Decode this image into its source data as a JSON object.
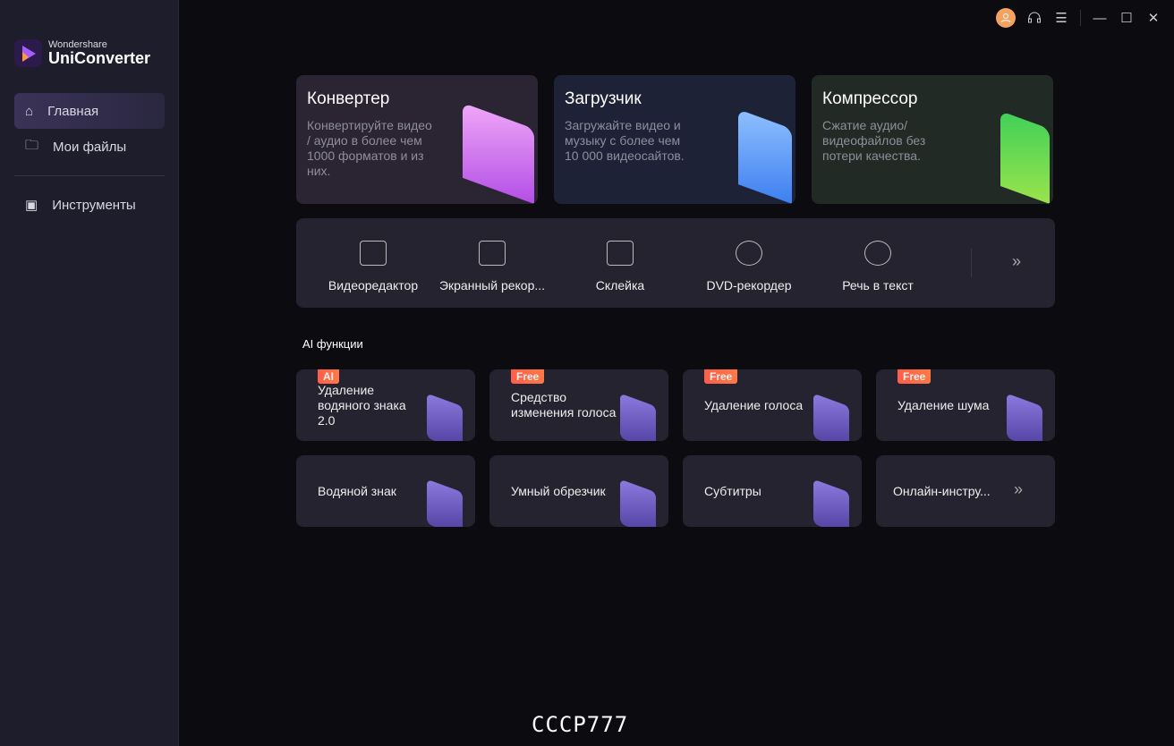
{
  "brand": {
    "small": "Wondershare",
    "big": "UniConverter"
  },
  "sidebar": {
    "items": [
      {
        "label": "Главная",
        "icon": "home-icon",
        "active": true
      },
      {
        "label": "Мои файлы",
        "icon": "folder-icon"
      },
      {
        "label": "Инструменты",
        "icon": "toolbox-icon"
      }
    ]
  },
  "topbar": {
    "icons": [
      "avatar-icon",
      "headset-icon",
      "menu-icon",
      "minimize-icon",
      "maximize-icon",
      "close-icon"
    ]
  },
  "main_cards": [
    {
      "title": "Конвертер",
      "desc": "Конвертируйте видео / аудио в более чем 1000 форматов и из них.",
      "color": "#2a2433",
      "accent": "#d77cf0"
    },
    {
      "title": "Загрузчик",
      "desc": "Загружайте видео и музыку с более чем 10 000 видеосайтов.",
      "color": "#1d2236",
      "accent": "#5b9bf5"
    },
    {
      "title": "Компрессор",
      "desc": "Сжатие аудио/ видеофайлов без потери качества.",
      "color": "#212a24",
      "accent": "#52d44a"
    }
  ],
  "tools": [
    {
      "label": "Видеоредактор"
    },
    {
      "label": "Экранный рекор..."
    },
    {
      "label": "Склейка"
    },
    {
      "label": "DVD-рекордер"
    },
    {
      "label": "Речь в текст"
    }
  ],
  "ai_section": {
    "title": "AI функции"
  },
  "ai_cards": [
    {
      "label": "Удаление водяного знака 2.0",
      "badge": "AI"
    },
    {
      "label": "Средство изменения голоса",
      "badge": "Free"
    },
    {
      "label": "Удаление голоса",
      "badge": "Free"
    },
    {
      "label": "Удаление шума",
      "badge": "Free"
    },
    {
      "label": "Водяной знак"
    },
    {
      "label": "Умный обрезчик"
    },
    {
      "label": "Субтитры"
    },
    {
      "label": "Онлайн-инстру..."
    }
  ],
  "watermark": "СССР777"
}
